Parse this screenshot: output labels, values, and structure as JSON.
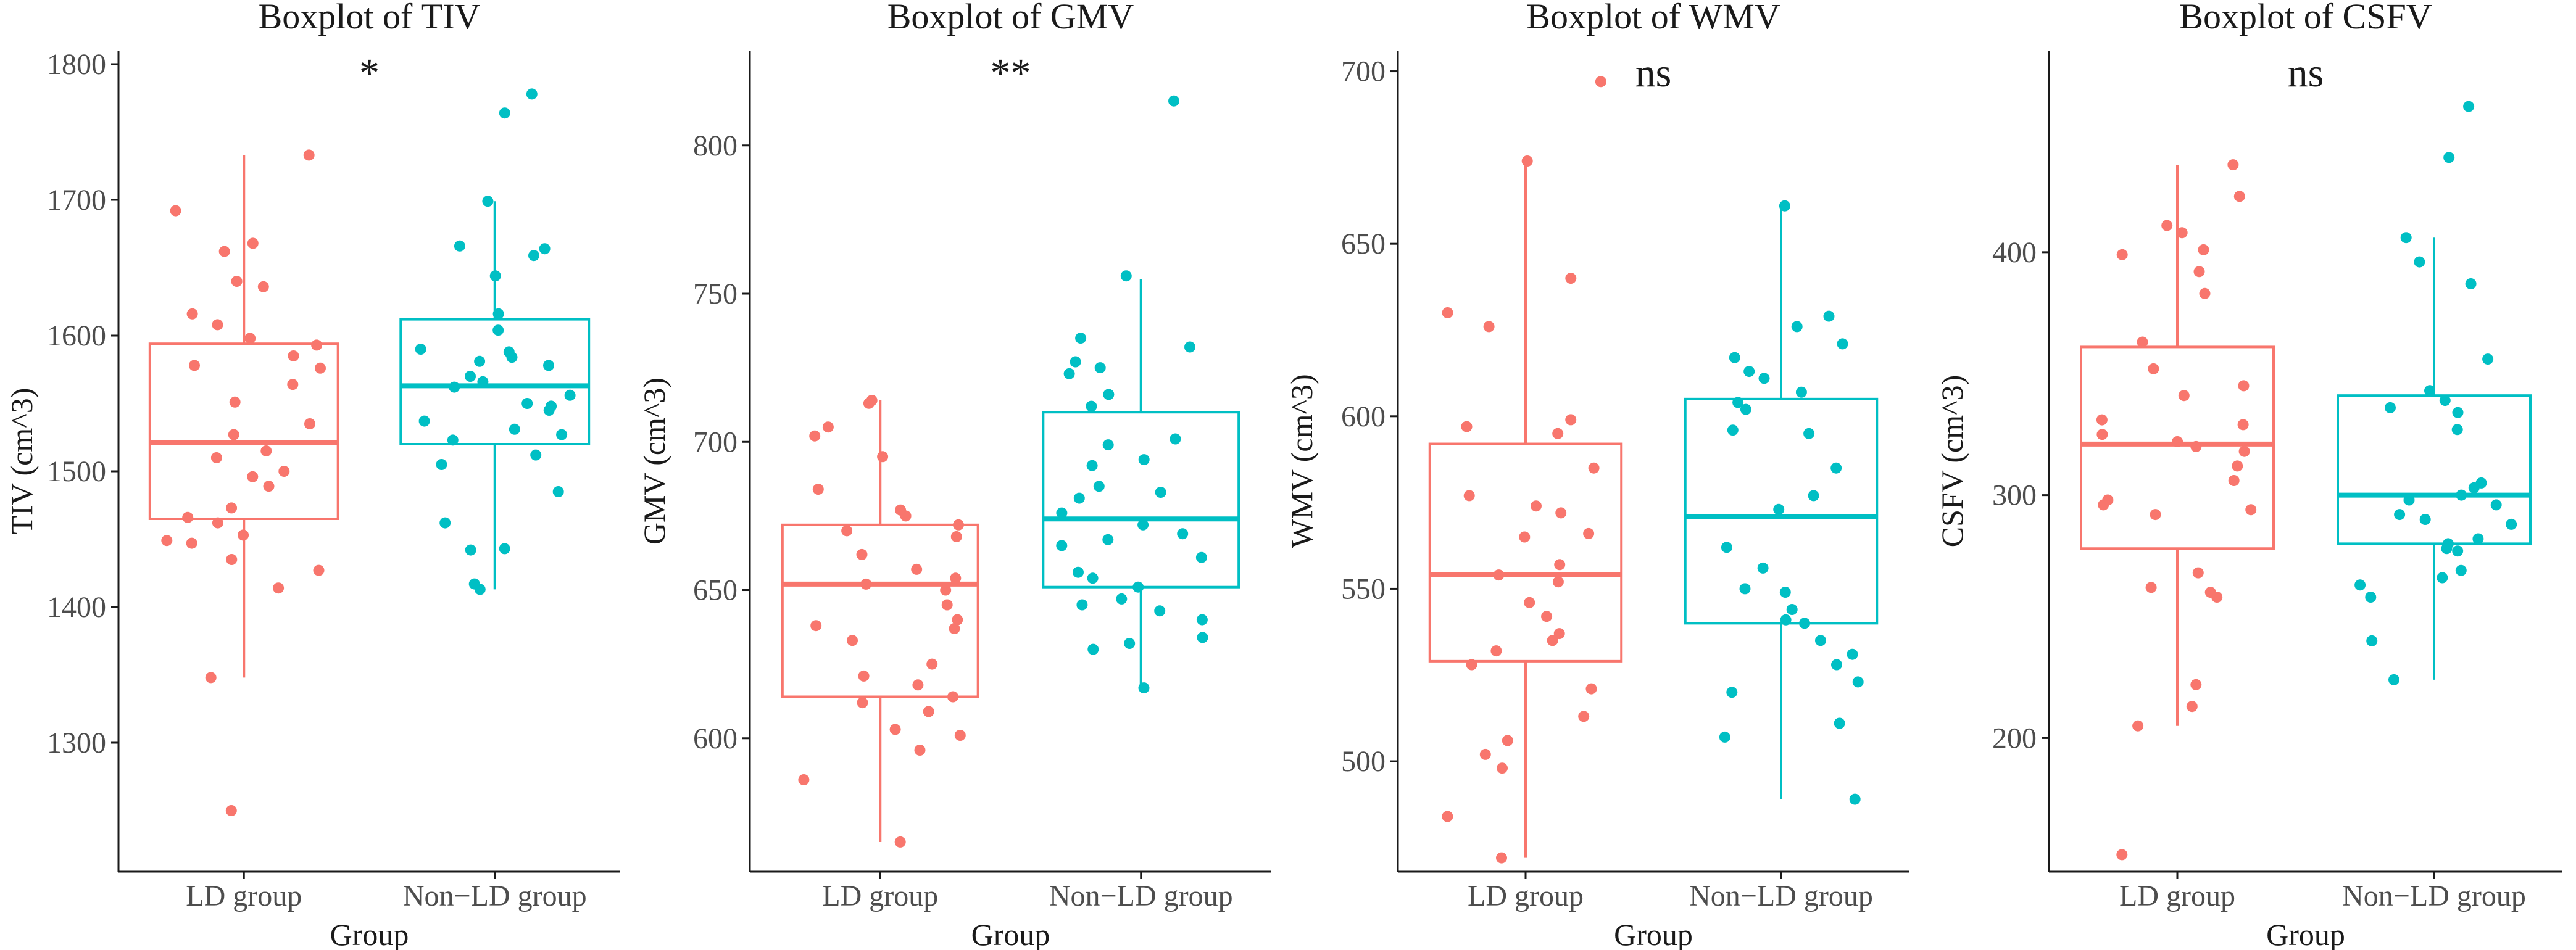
{
  "chart_data": [
    {
      "type": "boxplot",
      "title": "Boxplot of TIV",
      "xlabel": "Group",
      "ylabel": "TIV (cm^3)",
      "significance": "*",
      "ylim": [
        1205,
        1810
      ],
      "yticks": [
        1300,
        1400,
        1500,
        1600,
        1700,
        1800
      ],
      "categories": [
        "LD group",
        "Non−LD group"
      ],
      "groups": [
        {
          "name": "LD group",
          "color": "#F8766D",
          "min": 1348,
          "q1": 1465,
          "median": 1521,
          "q3": 1594,
          "max": 1733,
          "points": [
            1733,
            1692,
            1668,
            1662,
            1640,
            1636,
            1616,
            1608,
            1598,
            1593,
            1585,
            1578,
            1576,
            1564,
            1551,
            1535,
            1527,
            1515,
            1510,
            1500,
            1496,
            1489,
            1473,
            1466,
            1462,
            1453,
            1449,
            1447,
            1435,
            1427,
            1414,
            1348,
            1250
          ]
        },
        {
          "name": "Non−LD group",
          "color": "#00BFC4",
          "min": 1413,
          "q1": 1520,
          "median": 1563,
          "q3": 1612,
          "max": 1699,
          "points": [
            1778,
            1764,
            1699,
            1666,
            1664,
            1659,
            1644,
            1616,
            1604,
            1590,
            1588,
            1584,
            1581,
            1578,
            1570,
            1566,
            1562,
            1556,
            1550,
            1548,
            1545,
            1537,
            1531,
            1527,
            1523,
            1512,
            1505,
            1485,
            1462,
            1442,
            1443,
            1417,
            1413
          ]
        }
      ]
    },
    {
      "type": "boxplot",
      "title": "Boxplot of GMV",
      "xlabel": "Group",
      "ylabel": "GMV (cm^3)",
      "significance": "**",
      "ylim": [
        555,
        832
      ],
      "yticks": [
        600,
        650,
        700,
        750,
        800
      ],
      "categories": [
        "LD group",
        "Non−LD group"
      ],
      "groups": [
        {
          "name": "LD group",
          "color": "#F8766D",
          "min": 565,
          "q1": 614,
          "median": 652,
          "q3": 672,
          "max": 714,
          "points": [
            714,
            713,
            705,
            702,
            695,
            684,
            677,
            675,
            672,
            670,
            668,
            662,
            657,
            654,
            652,
            650,
            645,
            640,
            638,
            637,
            633,
            625,
            621,
            618,
            614,
            612,
            609,
            603,
            601,
            596,
            586,
            565
          ]
        },
        {
          "name": "Non−LD group",
          "color": "#00BFC4",
          "min": 617,
          "q1": 651,
          "median": 674,
          "q3": 710,
          "max": 755,
          "points": [
            815,
            756,
            735,
            732,
            727,
            725,
            723,
            716,
            712,
            701,
            699,
            694,
            692,
            685,
            683,
            681,
            676,
            672,
            669,
            667,
            665,
            661,
            656,
            654,
            651,
            647,
            645,
            643,
            640,
            634,
            632,
            630,
            617
          ]
        }
      ]
    },
    {
      "type": "boxplot",
      "title": "Boxplot of WMV",
      "xlabel": "Group",
      "ylabel": "WMV (cm^3)",
      "significance": "ns",
      "ylim": [
        468,
        706
      ],
      "yticks": [
        500,
        550,
        600,
        650,
        700
      ],
      "categories": [
        "LD group",
        "Non−LD group"
      ],
      "groups": [
        {
          "name": "LD group",
          "color": "#F8766D",
          "min": 472,
          "q1": 529,
          "median": 554,
          "q3": 592,
          "max": 674,
          "points": [
            697,
            674,
            640,
            630,
            626,
            599,
            597,
            595,
            585,
            577,
            574,
            572,
            566,
            565,
            557,
            554,
            552,
            546,
            542,
            537,
            535,
            532,
            528,
            521,
            513,
            506,
            502,
            498,
            484,
            472
          ]
        },
        {
          "name": "Non−LD group",
          "color": "#00BFC4",
          "min": 489,
          "q1": 540,
          "median": 571,
          "q3": 605,
          "max": 661,
          "points": [
            661,
            629,
            626,
            621,
            617,
            613,
            611,
            607,
            604,
            602,
            596,
            595,
            585,
            577,
            573,
            562,
            556,
            550,
            549,
            544,
            541,
            540,
            535,
            531,
            528,
            523,
            520,
            511,
            507,
            489
          ]
        }
      ]
    },
    {
      "type": "boxplot",
      "title": "Boxplot of CSFV",
      "xlabel": "Group",
      "ylabel": "CSFV (cm^3)",
      "significance": "ns",
      "ylim": [
        145,
        483
      ],
      "yticks": [
        200,
        300,
        400
      ],
      "categories": [
        "LD group",
        "Non−LD group"
      ],
      "groups": [
        {
          "name": "LD group",
          "color": "#F8766D",
          "min": 205,
          "q1": 278,
          "median": 321,
          "q3": 361,
          "max": 436,
          "points": [
            436,
            423,
            411,
            408,
            401,
            399,
            392,
            383,
            363,
            352,
            345,
            341,
            331,
            329,
            325,
            322,
            320,
            318,
            312,
            306,
            298,
            296,
            294,
            292,
            268,
            262,
            260,
            258,
            222,
            213,
            205,
            152
          ]
        },
        {
          "name": "Non−LD group",
          "color": "#00BFC4",
          "min": 224,
          "q1": 280,
          "median": 300,
          "q3": 341,
          "max": 406,
          "points": [
            460,
            439,
            406,
            396,
            387,
            356,
            343,
            339,
            336,
            334,
            327,
            305,
            303,
            300,
            298,
            296,
            292,
            290,
            288,
            282,
            280,
            278,
            277,
            269,
            266,
            263,
            258,
            240,
            224
          ]
        }
      ]
    }
  ]
}
